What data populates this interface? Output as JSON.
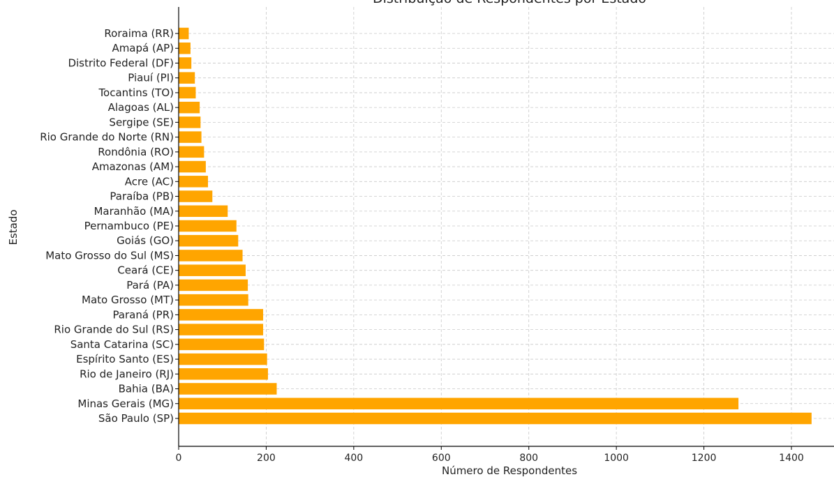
{
  "chart_data": {
    "type": "bar",
    "orientation": "horizontal",
    "title": "Distribuição de Respondentes por Estado",
    "xlabel": "Número de Respondentes",
    "ylabel": "Estado",
    "xlim": [
      0,
      1500
    ],
    "xticks": [
      0,
      200,
      400,
      600,
      800,
      1000,
      1200,
      1400
    ],
    "grid": true,
    "bar_color": "#FFA500",
    "categories": [
      "Roraima (RR)",
      "Amapá (AP)",
      "Distrito Federal (DF)",
      "Piauí (PI)",
      "Tocantins (TO)",
      "Alagoas (AL)",
      "Sergipe (SE)",
      "Rio Grande do Norte (RN)",
      "Rondônia (RO)",
      "Amazonas (AM)",
      "Acre (AC)",
      "Paraíba (PB)",
      "Maranhão (MA)",
      "Pernambuco (PE)",
      "Goiás (GO)",
      "Mato Grosso do Sul (MS)",
      "Ceará (CE)",
      "Pará (PA)",
      "Mato Grosso (MT)",
      "Paraná (PR)",
      "Rio Grande do Sul (RS)",
      "Santa Catarina (SC)",
      "Espírito Santo (ES)",
      "Rio de Janeiro (RJ)",
      "Bahia (BA)",
      "Minas Gerais (MG)",
      "São Paulo (SP)"
    ],
    "values": [
      23,
      27,
      29,
      37,
      39,
      48,
      50,
      52,
      58,
      62,
      67,
      77,
      112,
      132,
      136,
      146,
      153,
      158,
      159,
      193,
      193,
      195,
      202,
      204,
      224,
      1279,
      1446
    ]
  }
}
